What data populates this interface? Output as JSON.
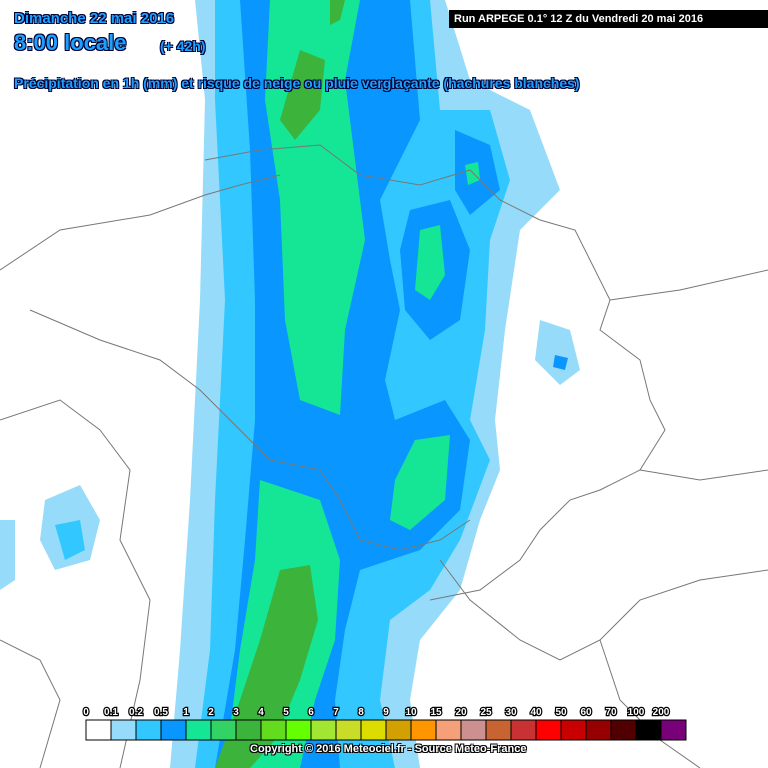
{
  "header": {
    "date": "Dimanche 22 mai 2016",
    "time": "8:00 locale",
    "lead": "(+ 42h)",
    "subtitle": "Précipitation en 1h (mm) et risque de neige ou pluie verglaçante (hachures blanches)",
    "run": "Run ARPEGE 0.1° 12 Z du Vendredi 20 mai 2016"
  },
  "legend": {
    "labels": [
      "0",
      "0.1",
      "0.2",
      "0.5",
      "1",
      "2",
      "3",
      "4",
      "5",
      "6",
      "7",
      "8",
      "9",
      "10",
      "15",
      "20",
      "25",
      "30",
      "40",
      "50",
      "60",
      "70",
      "100",
      "200"
    ],
    "colors": [
      "#ffffff",
      "#96dcfa",
      "#32c8ff",
      "#0a96ff",
      "#14e696",
      "#32d264",
      "#3cb43c",
      "#64dc1e",
      "#64ff00",
      "#a0e632",
      "#c8dc28",
      "#dcdc00",
      "#d2a000",
      "#ff9600",
      "#f5a078",
      "#cc9090",
      "#c86432",
      "#c83232",
      "#ff0000",
      "#c80000",
      "#960000",
      "#500000",
      "#000000",
      "#780078"
    ]
  },
  "footer": "Copyright © 2016 Meteociel.fr - Source Meteo-France"
}
